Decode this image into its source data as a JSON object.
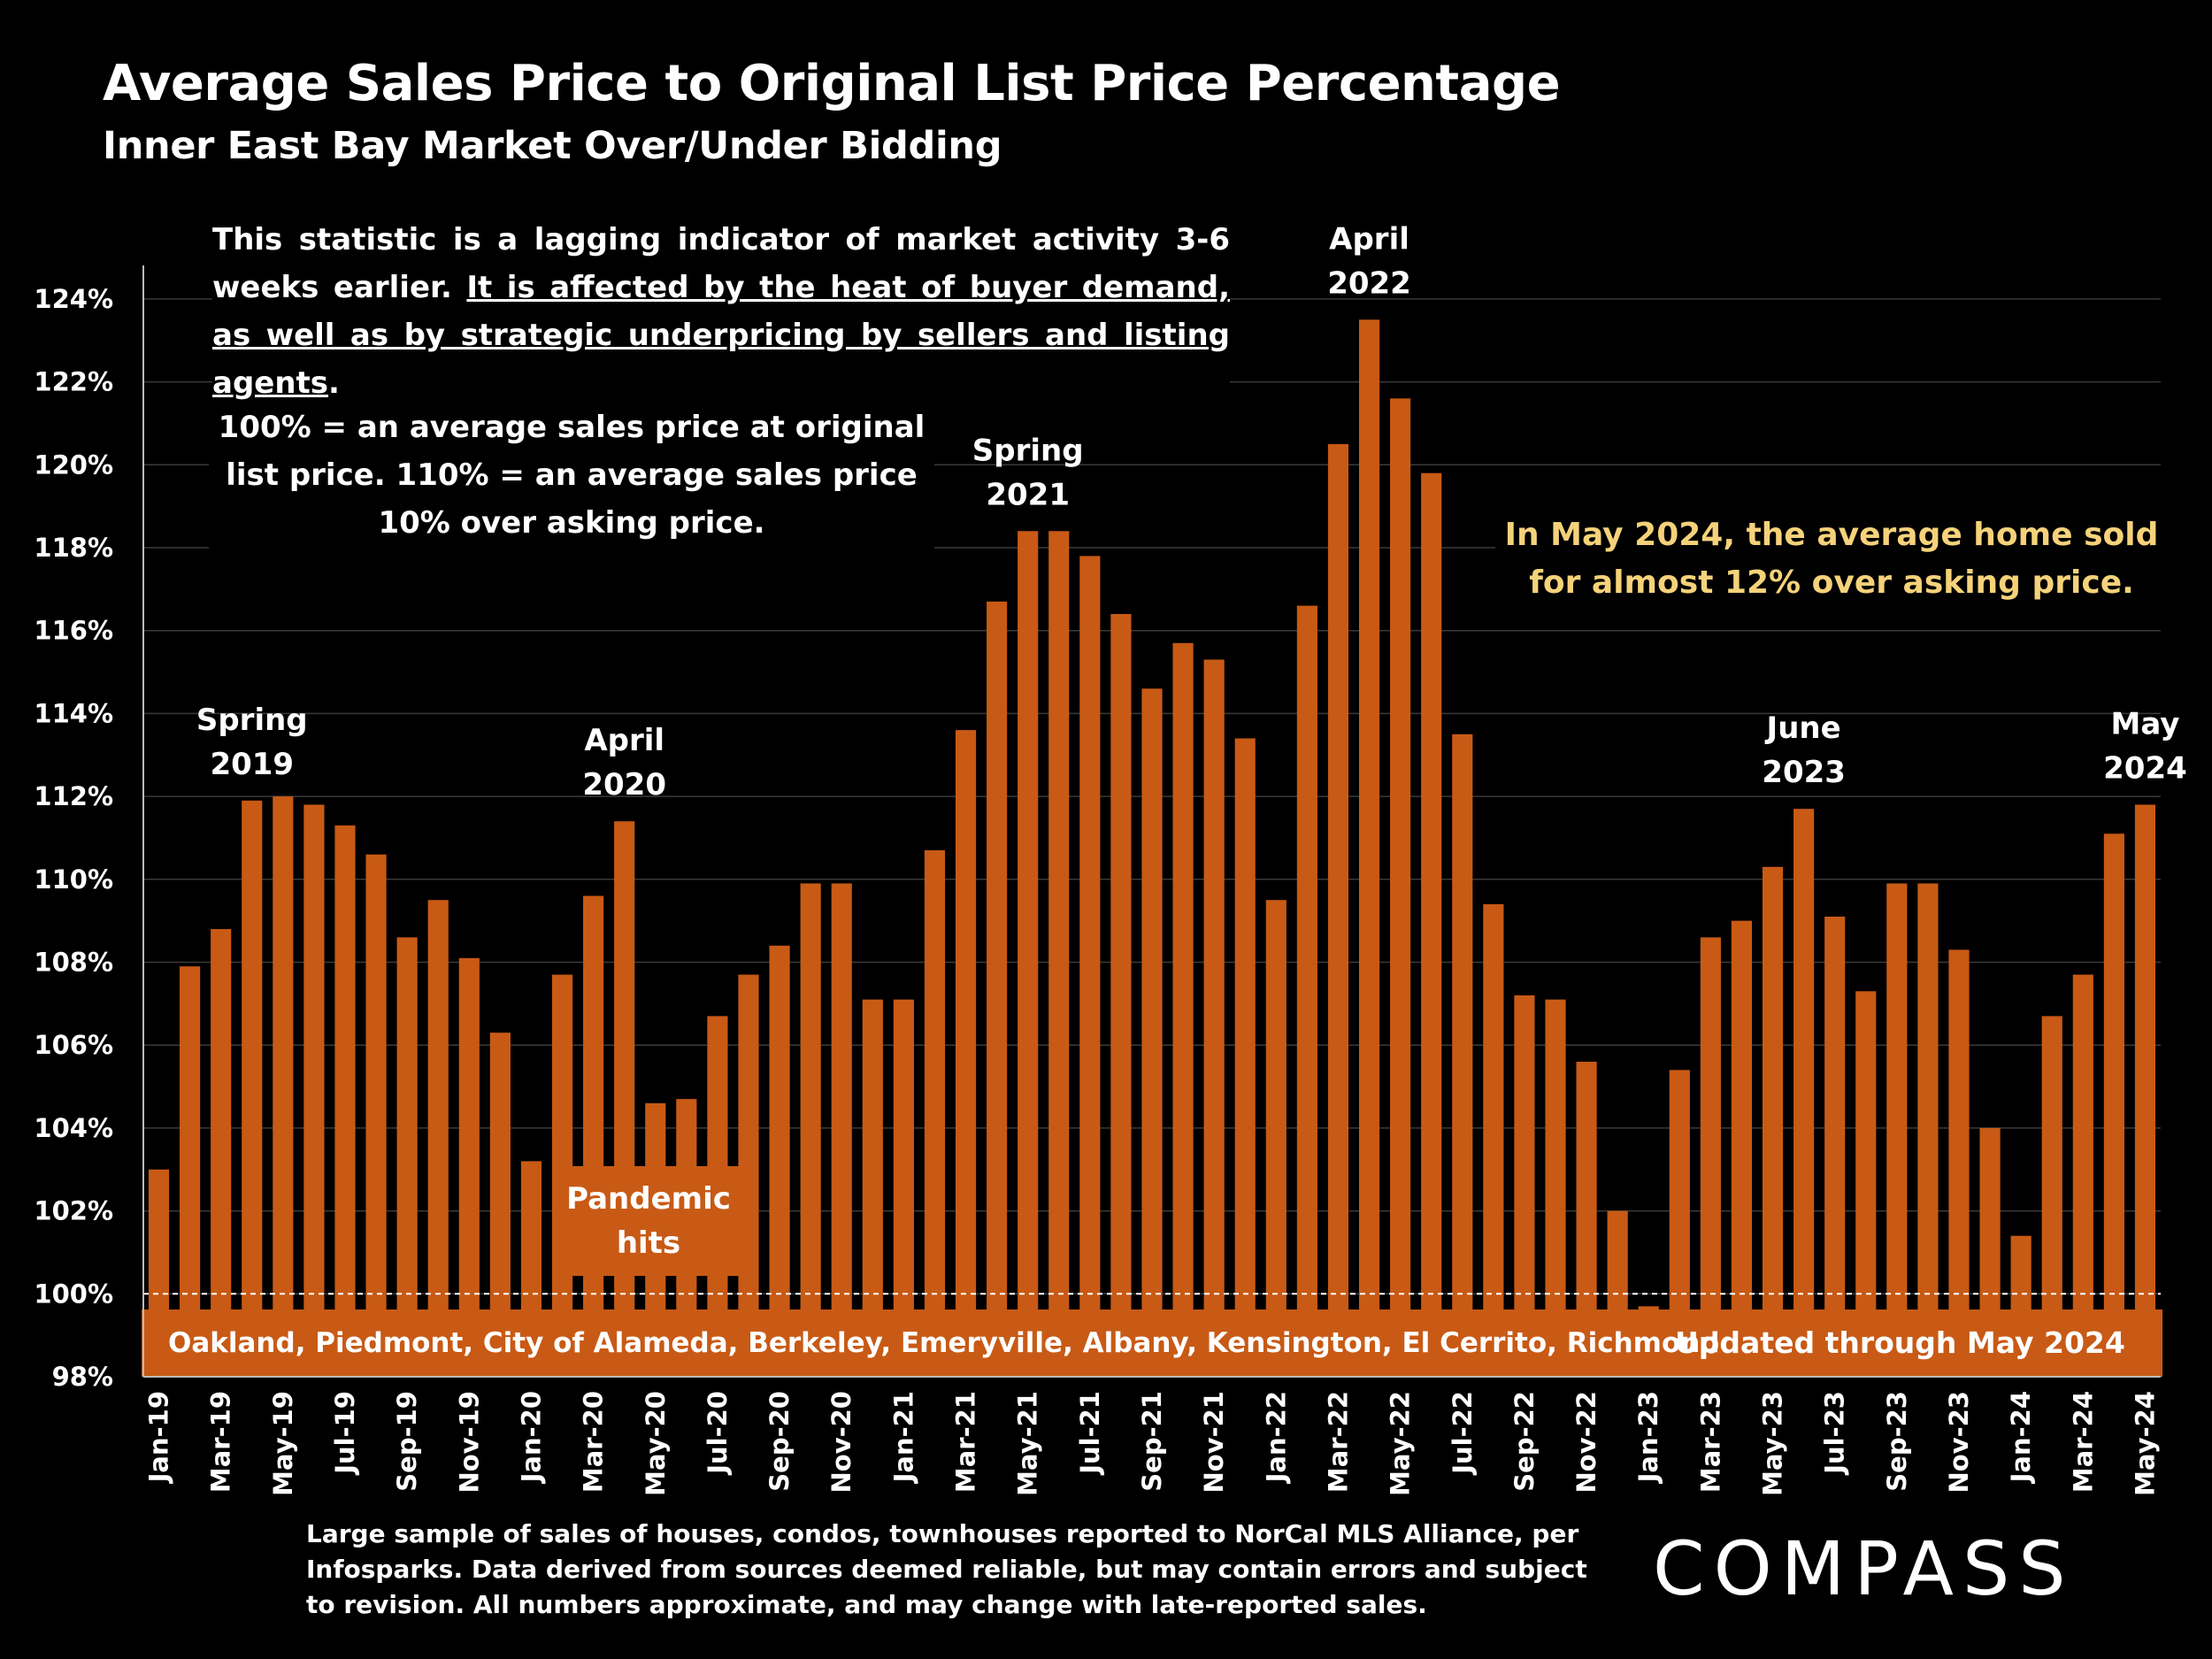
{
  "title": "Average Sales Price to Original List Price Percentage",
  "subtitle": "Inner East Bay Market Over/Under Bidding",
  "note_lagging": {
    "plain": "This statistic is a lagging indicator of market activity 3-6 weeks earlier.",
    "underlined": "It is affected by the heat of buyer demand, as well as by strategic underpricing by sellers and listing agents",
    "end": "."
  },
  "note_definition": "100% = an average sales price at original list price. 110% = an average sales price 10% over asking price.",
  "highlight_note": "In May 2024, the average home sold for almost 12% over asking price.",
  "pandemic_label_line1": "Pandemic",
  "pandemic_label_line2": "hits",
  "region_band": "Oakland, Piedmont, City of Alameda, Berkeley, Emeryville, Albany, Kensington, El Cerrito, Richmond",
  "updated_band": "Updated through May 2024",
  "footnote": "Large sample of sales of houses, condos, townhouses reported to NorCal MLS Alliance, per Infosparks. Data derived from sources deemed reliable, but may contain errors and subject to revision. All numbers approximate, and may change with late-reported sales.",
  "logo": "COMPASS",
  "colors": {
    "bar": "#c85a15",
    "background": "#000000",
    "highlight": "#f5d27a",
    "text": "#ffffff"
  },
  "chart_data": {
    "type": "bar",
    "ylim": [
      98,
      125
    ],
    "yticks": [
      "98%",
      "100%",
      "102%",
      "104%",
      "106%",
      "108%",
      "110%",
      "112%",
      "114%",
      "116%",
      "118%",
      "120%",
      "122%",
      "124%"
    ],
    "reference_line": 100,
    "grid": true,
    "categories": [
      "Jan-19",
      "Feb-19",
      "Mar-19",
      "Apr-19",
      "May-19",
      "Jun-19",
      "Jul-19",
      "Aug-19",
      "Sep-19",
      "Oct-19",
      "Nov-19",
      "Dec-19",
      "Jan-20",
      "Feb-20",
      "Mar-20",
      "Apr-20",
      "May-20",
      "Jun-20",
      "Jul-20",
      "Aug-20",
      "Sep-20",
      "Oct-20",
      "Nov-20",
      "Dec-20",
      "Jan-21",
      "Feb-21",
      "Mar-21",
      "Apr-21",
      "May-21",
      "Jun-21",
      "Jul-21",
      "Aug-21",
      "Sep-21",
      "Oct-21",
      "Nov-21",
      "Dec-21",
      "Jan-22",
      "Feb-22",
      "Mar-22",
      "Apr-22",
      "May-22",
      "Jun-22",
      "Jul-22",
      "Aug-22",
      "Sep-22",
      "Oct-22",
      "Nov-22",
      "Dec-22",
      "Jan-23",
      "Feb-23",
      "Mar-23",
      "Apr-23",
      "May-23",
      "Jun-23",
      "Jul-23",
      "Aug-23",
      "Sep-23",
      "Oct-23",
      "Nov-23",
      "Dec-23",
      "Jan-24",
      "Feb-24",
      "Mar-24",
      "Apr-24",
      "May-24"
    ],
    "xtick_labels": [
      "Jan-19",
      "Mar-19",
      "May-19",
      "Jul-19",
      "Sep-19",
      "Nov-19",
      "Jan-20",
      "Mar-20",
      "May-20",
      "Jul-20",
      "Sep-20",
      "Nov-20",
      "Jan-21",
      "Mar-21",
      "May-21",
      "Jul-21",
      "Sep-21",
      "Nov-21",
      "Jan-22",
      "Mar-22",
      "May-22",
      "Jul-22",
      "Sep-22",
      "Nov-22",
      "Jan-23",
      "Mar-23",
      "May-23",
      "Jul-23",
      "Sep-23",
      "Nov-23",
      "Jan-24",
      "Mar-24",
      "May-24"
    ],
    "values": [
      103.0,
      107.9,
      108.8,
      111.9,
      112.0,
      111.8,
      111.3,
      110.6,
      108.6,
      109.5,
      108.1,
      106.3,
      103.2,
      107.7,
      109.6,
      111.4,
      104.6,
      104.7,
      106.7,
      107.7,
      108.4,
      109.9,
      109.9,
      107.1,
      107.1,
      110.7,
      113.6,
      116.7,
      118.4,
      118.4,
      117.8,
      116.4,
      114.6,
      115.7,
      115.3,
      113.4,
      109.5,
      116.6,
      120.5,
      123.5,
      121.6,
      119.8,
      113.5,
      109.4,
      107.2,
      107.1,
      105.6,
      102.0,
      99.7,
      105.4,
      108.6,
      109.0,
      110.3,
      111.7,
      109.1,
      107.3,
      109.9,
      109.9,
      108.3,
      104.0,
      101.4,
      106.7,
      107.7,
      111.1,
      111.8
    ],
    "annotations": [
      {
        "lines": [
          "Spring",
          "2019"
        ],
        "category": "Apr-19"
      },
      {
        "lines": [
          "April",
          "2020"
        ],
        "category": "Apr-20"
      },
      {
        "lines": [
          "Spring",
          "2021"
        ],
        "category": "May-21"
      },
      {
        "lines": [
          "April",
          "2022"
        ],
        "category": "Apr-22"
      },
      {
        "lines": [
          "June",
          "2023"
        ],
        "category": "Jun-23"
      },
      {
        "lines": [
          "May",
          "2024"
        ],
        "category": "May-24"
      }
    ]
  }
}
